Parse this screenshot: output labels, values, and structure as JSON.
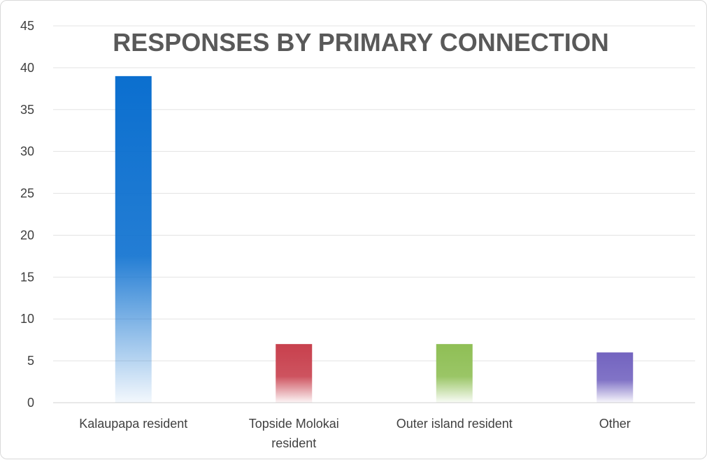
{
  "chart_data": {
    "type": "bar",
    "title": "RESPONSES BY PRIMARY CONNECTION",
    "xlabel": "",
    "ylabel": "",
    "categories": [
      [
        "Kalaupapa resident"
      ],
      [
        "Topside Molokai",
        "resident"
      ],
      [
        "Outer island resident"
      ],
      [
        "Other"
      ]
    ],
    "values": [
      39,
      7,
      7,
      6
    ],
    "colors": [
      "#0b6fcf",
      "#c8404d",
      "#8fbf55",
      "#7364c0"
    ],
    "ylim": [
      0,
      45
    ],
    "yticks": [
      0,
      5,
      10,
      15,
      20,
      25,
      30,
      35,
      40,
      45
    ],
    "grid": true,
    "legend": "none"
  }
}
